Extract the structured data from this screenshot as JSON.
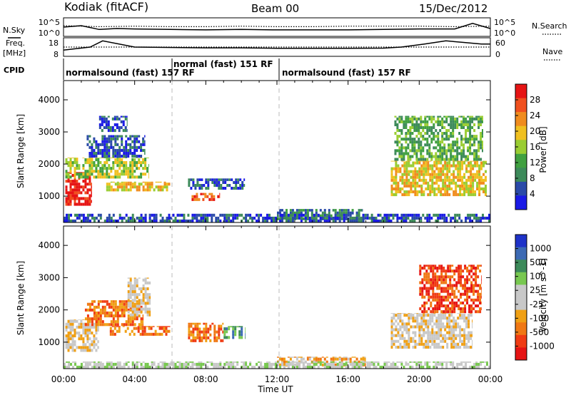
{
  "header": {
    "station": "Kodiak (fitACF)",
    "beam": "Beam 00",
    "date": "15/Dec/2012"
  },
  "side_labels": {
    "nsky": "N.Sky",
    "freq": "Freq.",
    "mhz": "[MHz]",
    "cpid": "CPID",
    "nsearch": "N.Search",
    "nave": "Nave"
  },
  "cpid_segments": [
    {
      "label": "normalsound (fast) 157 RF"
    },
    {
      "label": "normal (fast) 151 RF"
    },
    {
      "label": "normalsound (fast) 157 RF"
    }
  ],
  "colors": {
    "power": [
      "#1a1ae6",
      "#2a4aa8",
      "#3d8a5a",
      "#40a040",
      "#9acd32",
      "#f0c020",
      "#f08c1e",
      "#f0501e",
      "#e61414"
    ],
    "velocity": [
      "#e61414",
      "#f03c14",
      "#f07814",
      "#f0a014",
      "#c8c8c8",
      "#c8c8c8",
      "#78c850",
      "#3c8a5a",
      "#3c6ab4",
      "#1e32c8"
    ]
  },
  "chart_data": [
    {
      "type": "line",
      "name": "noise",
      "ytick_labels_left": [
        "10^5",
        "10^0"
      ],
      "ytick_labels_right": [
        "10^5",
        "10^0"
      ],
      "series": [
        {
          "name": "N.Sky",
          "x": [
            0,
            1,
            2,
            3,
            4,
            6,
            8,
            10,
            12,
            14,
            16,
            18,
            20,
            22,
            23,
            24
          ],
          "values": [
            2.0,
            2.3,
            1.5,
            1.7,
            1.6,
            1.5,
            1.4,
            1.5,
            1.4,
            1.4,
            1.4,
            1.5,
            1.6,
            1.6,
            2.8,
            1.7
          ]
        },
        {
          "name": "N.Search",
          "x": [
            0,
            2,
            4,
            6,
            8,
            10,
            12,
            14,
            16,
            18,
            20,
            22,
            24
          ],
          "values": [
            2.3,
            2.1,
            2.2,
            2.1,
            2.1,
            2.2,
            2.1,
            2.1,
            2.2,
            2.2,
            2.2,
            2.1,
            2.2
          ]
        }
      ]
    },
    {
      "type": "line",
      "name": "frequency-nave",
      "ytick_labels_left": [
        "18",
        "8"
      ],
      "ytick_labels_right": [
        "60",
        "0"
      ],
      "series": [
        {
          "name": "Freq.",
          "x": [
            0,
            1.5,
            2.2,
            4,
            8,
            10,
            12,
            14,
            16,
            18,
            19,
            20.3,
            21.5,
            22.5,
            23.5,
            24
          ],
          "values": [
            12,
            14,
            18,
            14,
            13.5,
            13.5,
            13.2,
            13.2,
            13.2,
            13.3,
            14,
            16,
            18,
            17,
            16,
            16
          ]
        },
        {
          "name": "Nave",
          "x": [
            0,
            4,
            8,
            12,
            16,
            20,
            24
          ],
          "values": [
            14,
            14,
            14,
            14,
            14,
            14,
            14
          ]
        }
      ]
    },
    {
      "type": "heatmap",
      "name": "power",
      "ylabel": "Slant Range [km]",
      "colorbar_label": "Power [dB]",
      "colorbar_ticks": [
        "28",
        "24",
        "20",
        "16",
        "12",
        "8",
        "4"
      ],
      "yticks": [
        "4000",
        "3000",
        "2000",
        "1000"
      ],
      "ylim": [
        180,
        4600
      ],
      "xlim": [
        0,
        24
      ],
      "regions": [
        {
          "t0": 0.1,
          "t1": 1.6,
          "r0": 700,
          "r1": 1750,
          "level": 8
        },
        {
          "t0": 0.1,
          "t1": 4.8,
          "r0": 1550,
          "r1": 2200,
          "level": 4
        },
        {
          "t0": 1.3,
          "t1": 4.6,
          "r0": 2200,
          "r1": 2900,
          "level": 1
        },
        {
          "t0": 2.0,
          "t1": 3.6,
          "r0": 3000,
          "r1": 3500,
          "level": 1
        },
        {
          "t0": 2.4,
          "t1": 6.0,
          "r0": 1150,
          "r1": 1450,
          "level": 5
        },
        {
          "t0": 7.2,
          "t1": 8.8,
          "r0": 850,
          "r1": 1100,
          "level": 7
        },
        {
          "t0": 7.0,
          "t1": 10.2,
          "r0": 1200,
          "r1": 1550,
          "level": 1
        },
        {
          "t0": 12.0,
          "t1": 16.8,
          "r0": 250,
          "r1": 600,
          "level": 2
        },
        {
          "t0": 18.4,
          "t1": 23.8,
          "r0": 1000,
          "r1": 2100,
          "level": 5
        },
        {
          "t0": 18.6,
          "t1": 23.6,
          "r0": 2100,
          "r1": 3500,
          "level": 3
        },
        {
          "t0": 0,
          "t1": 24,
          "r0": 180,
          "r1": 450,
          "level": 1
        }
      ]
    },
    {
      "type": "heatmap",
      "name": "velocity",
      "ylabel": "Slant Range [km]",
      "colorbar_label": "Velocity [m s^-1]",
      "colorbar_ticks": [
        "1000",
        "500",
        "100",
        "25",
        "-25",
        "-100",
        "-500",
        "-1000"
      ],
      "yticks": [
        "4000",
        "3000",
        "2000",
        "1000"
      ],
      "xticks": [
        "00:00",
        "04:00",
        "08:00",
        "12:00",
        "16:00",
        "20:00",
        "00:00"
      ],
      "xlabel": "Time UT",
      "ylim": [
        180,
        4600
      ],
      "xlim": [
        0,
        24
      ],
      "regions": [
        {
          "t0": 0.1,
          "t1": 2.0,
          "r0": 700,
          "r1": 1700,
          "level": 4
        },
        {
          "t0": 1.2,
          "t1": 4.5,
          "r0": 1500,
          "r1": 2300,
          "level": 2
        },
        {
          "t0": 2.6,
          "t1": 6.0,
          "r0": 1200,
          "r1": 1500,
          "level": 2
        },
        {
          "t0": 3.6,
          "t1": 4.9,
          "r0": 1800,
          "r1": 3000,
          "level": 4
        },
        {
          "t0": 7.0,
          "t1": 9.0,
          "r0": 1000,
          "r1": 1600,
          "level": 2
        },
        {
          "t0": 9.0,
          "t1": 10.2,
          "r0": 1100,
          "r1": 1500,
          "level": 7
        },
        {
          "t0": 12.0,
          "t1": 17.0,
          "r0": 250,
          "r1": 550,
          "level": 3
        },
        {
          "t0": 18.4,
          "t1": 23.0,
          "r0": 800,
          "r1": 1900,
          "level": 4
        },
        {
          "t0": 20.0,
          "t1": 23.5,
          "r0": 1900,
          "r1": 3400,
          "level": 1
        },
        {
          "t0": 0,
          "t1": 24,
          "r0": 180,
          "r1": 400,
          "level": 5
        }
      ]
    }
  ]
}
